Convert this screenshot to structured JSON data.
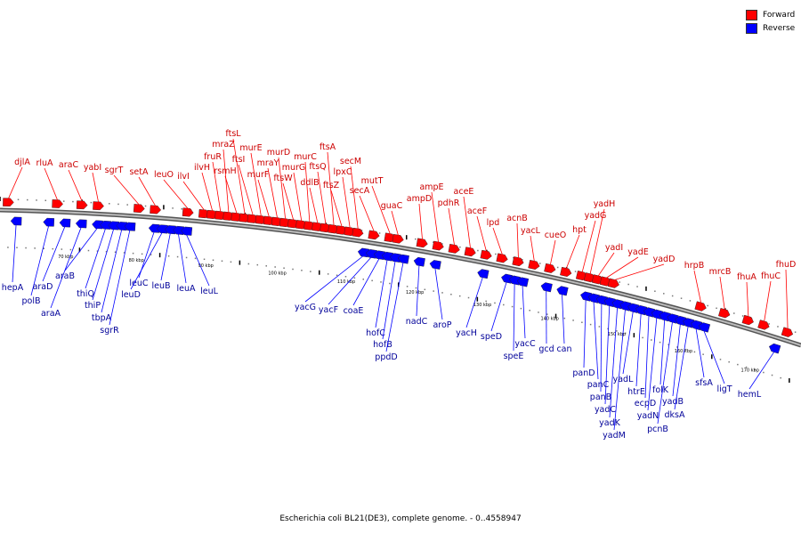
{
  "legend": {
    "forward": {
      "label": "Forward",
      "color": "#ff0000"
    },
    "reverse": {
      "label": "Reverse",
      "color": "#0000ff"
    }
  },
  "caption": "Escherichia coli BL21(DE3), complete genome. - 0..4558947",
  "colors": {
    "forward": "#ff0000",
    "reverse": "#0000ff",
    "backbone": "#888888",
    "label_forward": "#cc0000",
    "label_reverse": "#000099"
  },
  "scale_labels": [
    "70 kbp",
    "80 kbp",
    "90 kbp",
    "100 kbp",
    "110 kbp",
    "120 kbp",
    "130 kbp",
    "140 kbp",
    "150 kbp",
    "160 kbp",
    "170 kbp"
  ],
  "forward_genes": [
    "djlA",
    "rluA",
    "araC",
    "yabI",
    "sgrT",
    "setA",
    "leuO",
    "ilvI",
    "ilvH",
    "fruR",
    "mraZ",
    "rsmH",
    "ftsL",
    "ftsI",
    "murE",
    "murF",
    "mraY",
    "murD",
    "ftsW",
    "murG",
    "murC",
    "ddlB",
    "ftsQ",
    "ftsA",
    "ftsZ",
    "lpxC",
    "secM",
    "secA",
    "mutT",
    "guaC",
    "ampD",
    "ampE",
    "pdhR",
    "aceE",
    "aceF",
    "lpd",
    "acnB",
    "yacL",
    "cueO",
    "hpt",
    "yadG",
    "yadH",
    "yadI",
    "yadE",
    "yadD",
    "hrpB",
    "mrcB",
    "fhuA",
    "fhuC",
    "fhuD"
  ],
  "reverse_genes": [
    "hepA",
    "polB",
    "araD",
    "araA",
    "araB",
    "thiQ",
    "thiP",
    "tbpA",
    "sgrR",
    "leuC",
    "leuD",
    "leuB",
    "leuA",
    "leuL",
    "yacG",
    "yacF",
    "coaE",
    "hofC",
    "hofB",
    "ppdD",
    "nadC",
    "aroP",
    "yacH",
    "speD",
    "speE",
    "yacC",
    "gcd",
    "can",
    "panD",
    "panC",
    "panB",
    "yadC",
    "yadK",
    "yadM",
    "yadL",
    "htrE",
    "ecpD",
    "yadN",
    "folK",
    "pcnB",
    "yadB",
    "dksA",
    "sfsA",
    "ligT",
    "hemL"
  ]
}
